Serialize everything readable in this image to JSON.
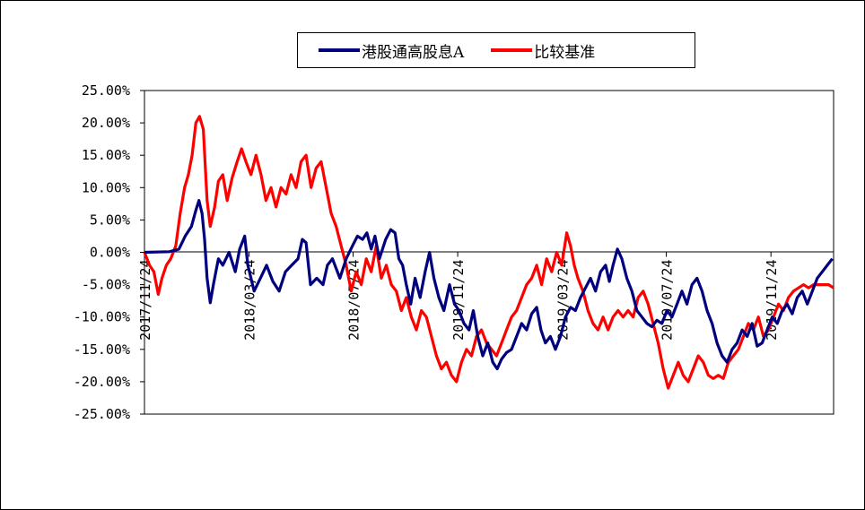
{
  "chart_data": {
    "type": "line",
    "title": "",
    "xlabel": "",
    "ylabel": "",
    "ylim": [
      -0.25,
      0.25
    ],
    "y_ticks": [
      "25.00%",
      "20.00%",
      "15.00%",
      "10.00%",
      "5.00%",
      "0.00%",
      "-5.00%",
      "-10.00%",
      "-15.00%",
      "-20.00%",
      "-25.00%"
    ],
    "x_ticks": [
      "2017/11/24",
      "2018/03/24",
      "2018/07/24",
      "2018/11/24",
      "2019/03/24",
      "2019/07/24",
      "2019/11/24"
    ],
    "grid": false,
    "legend_position": "top",
    "series": [
      {
        "name": "港股通高股息A",
        "color": "#00007f",
        "points": [
          [
            0.0,
            0.0
          ],
          [
            0.04,
            0.001
          ],
          [
            0.055,
            0.005
          ],
          [
            0.065,
            0.025
          ],
          [
            0.075,
            0.04
          ],
          [
            0.082,
            0.065
          ],
          [
            0.087,
            0.08
          ],
          [
            0.092,
            0.06
          ],
          [
            0.096,
            0.02
          ],
          [
            0.1,
            -0.04
          ],
          [
            0.105,
            -0.078
          ],
          [
            0.11,
            -0.05
          ],
          [
            0.118,
            -0.01
          ],
          [
            0.125,
            -0.02
          ],
          [
            0.135,
            0.0
          ],
          [
            0.145,
            -0.03
          ],
          [
            0.152,
            0.005
          ],
          [
            0.16,
            0.025
          ],
          [
            0.165,
            -0.02
          ],
          [
            0.175,
            -0.06
          ],
          [
            0.185,
            -0.04
          ],
          [
            0.195,
            -0.02
          ],
          [
            0.205,
            -0.045
          ],
          [
            0.215,
            -0.06
          ],
          [
            0.225,
            -0.03
          ],
          [
            0.235,
            -0.02
          ],
          [
            0.245,
            -0.01
          ],
          [
            0.252,
            0.02
          ],
          [
            0.258,
            0.015
          ],
          [
            0.265,
            -0.05
          ],
          [
            0.275,
            -0.04
          ],
          [
            0.285,
            -0.05
          ],
          [
            0.292,
            -0.02
          ],
          [
            0.3,
            -0.01
          ],
          [
            0.312,
            -0.04
          ],
          [
            0.322,
            -0.01
          ],
          [
            0.332,
            0.01
          ],
          [
            0.34,
            0.025
          ],
          [
            0.348,
            0.02
          ],
          [
            0.355,
            0.03
          ],
          [
            0.362,
            0.005
          ],
          [
            0.368,
            0.025
          ],
          [
            0.375,
            -0.01
          ],
          [
            0.385,
            0.02
          ],
          [
            0.393,
            0.035
          ],
          [
            0.4,
            0.03
          ],
          [
            0.406,
            -0.01
          ],
          [
            0.412,
            -0.02
          ],
          [
            0.418,
            -0.05
          ],
          [
            0.425,
            -0.08
          ],
          [
            0.432,
            -0.04
          ],
          [
            0.44,
            -0.07
          ],
          [
            0.448,
            -0.03
          ],
          [
            0.455,
            0.0
          ],
          [
            0.462,
            -0.04
          ],
          [
            0.47,
            -0.07
          ],
          [
            0.478,
            -0.09
          ],
          [
            0.487,
            -0.05
          ],
          [
            0.495,
            -0.08
          ],
          [
            0.502,
            -0.09
          ],
          [
            0.51,
            -0.11
          ],
          [
            0.518,
            -0.12
          ],
          [
            0.525,
            -0.09
          ],
          [
            0.532,
            -0.13
          ],
          [
            0.54,
            -0.16
          ],
          [
            0.548,
            -0.14
          ],
          [
            0.556,
            -0.17
          ],
          [
            0.563,
            -0.18
          ],
          [
            0.57,
            -0.165
          ],
          [
            0.578,
            -0.155
          ],
          [
            0.586,
            -0.15
          ],
          [
            0.594,
            -0.13
          ],
          [
            0.602,
            -0.11
          ],
          [
            0.61,
            -0.12
          ],
          [
            0.618,
            -0.095
          ],
          [
            0.626,
            -0.085
          ],
          [
            0.633,
            -0.12
          ],
          [
            0.64,
            -0.14
          ],
          [
            0.648,
            -0.13
          ],
          [
            0.656,
            -0.15
          ],
          [
            0.664,
            -0.13
          ],
          [
            0.672,
            -0.1
          ],
          [
            0.68,
            -0.085
          ],
          [
            0.688,
            -0.09
          ],
          [
            0.696,
            -0.07
          ],
          [
            0.704,
            -0.055
          ],
          [
            0.712,
            -0.04
          ],
          [
            0.72,
            -0.06
          ],
          [
            0.728,
            -0.03
          ],
          [
            0.736,
            -0.02
          ],
          [
            0.742,
            -0.045
          ],
          [
            0.748,
            -0.02
          ],
          [
            0.755,
            0.005
          ],
          [
            0.762,
            -0.01
          ],
          [
            0.77,
            -0.04
          ],
          [
            0.778,
            -0.06
          ],
          [
            0.786,
            -0.09
          ],
          [
            0.794,
            -0.1
          ],
          [
            0.802,
            -0.11
          ],
          [
            0.81,
            -0.115
          ],
          [
            0.818,
            -0.105
          ],
          [
            0.826,
            -0.11
          ],
          [
            0.834,
            -0.09
          ],
          [
            0.842,
            -0.1
          ],
          [
            0.85,
            -0.08
          ],
          [
            0.858,
            -0.06
          ],
          [
            0.866,
            -0.08
          ],
          [
            0.874,
            -0.05
          ],
          [
            0.882,
            -0.04
          ],
          [
            0.89,
            -0.06
          ],
          [
            0.898,
            -0.09
          ],
          [
            0.906,
            -0.11
          ],
          [
            0.914,
            -0.14
          ],
          [
            0.922,
            -0.16
          ],
          [
            0.93,
            -0.17
          ],
          [
            0.938,
            -0.15
          ],
          [
            0.946,
            -0.14
          ],
          [
            0.954,
            -0.12
          ],
          [
            0.962,
            -0.13
          ],
          [
            0.97,
            -0.11
          ],
          [
            0.978,
            -0.145
          ],
          [
            0.986,
            -0.14
          ],
          [
            0.994,
            -0.12
          ],
          [
            1.002,
            -0.1
          ],
          [
            1.01,
            -0.11
          ],
          [
            1.018,
            -0.09
          ],
          [
            1.026,
            -0.08
          ],
          [
            1.034,
            -0.095
          ],
          [
            1.042,
            -0.07
          ],
          [
            1.05,
            -0.06
          ],
          [
            1.058,
            -0.08
          ],
          [
            1.066,
            -0.06
          ],
          [
            1.074,
            -0.04
          ],
          [
            1.082,
            -0.03
          ],
          [
            1.09,
            -0.02
          ],
          [
            1.098,
            -0.01
          ]
        ]
      },
      {
        "name": "比较基准",
        "color": "#ff0000",
        "points": [
          [
            0.0,
            0.0
          ],
          [
            0.008,
            -0.02
          ],
          [
            0.015,
            -0.03
          ],
          [
            0.022,
            -0.065
          ],
          [
            0.028,
            -0.04
          ],
          [
            0.035,
            -0.02
          ],
          [
            0.042,
            -0.01
          ],
          [
            0.05,
            0.01
          ],
          [
            0.057,
            0.06
          ],
          [
            0.064,
            0.1
          ],
          [
            0.07,
            0.12
          ],
          [
            0.076,
            0.15
          ],
          [
            0.082,
            0.2
          ],
          [
            0.088,
            0.21
          ],
          [
            0.094,
            0.19
          ],
          [
            0.1,
            0.08
          ],
          [
            0.105,
            0.04
          ],
          [
            0.112,
            0.07
          ],
          [
            0.118,
            0.11
          ],
          [
            0.125,
            0.12
          ],
          [
            0.132,
            0.08
          ],
          [
            0.14,
            0.115
          ],
          [
            0.148,
            0.14
          ],
          [
            0.155,
            0.16
          ],
          [
            0.162,
            0.14
          ],
          [
            0.17,
            0.12
          ],
          [
            0.178,
            0.15
          ],
          [
            0.186,
            0.12
          ],
          [
            0.194,
            0.08
          ],
          [
            0.202,
            0.1
          ],
          [
            0.21,
            0.07
          ],
          [
            0.218,
            0.1
          ],
          [
            0.226,
            0.09
          ],
          [
            0.234,
            0.12
          ],
          [
            0.242,
            0.1
          ],
          [
            0.25,
            0.14
          ],
          [
            0.258,
            0.15
          ],
          [
            0.266,
            0.1
          ],
          [
            0.274,
            0.13
          ],
          [
            0.282,
            0.14
          ],
          [
            0.29,
            0.1
          ],
          [
            0.298,
            0.06
          ],
          [
            0.306,
            0.04
          ],
          [
            0.314,
            0.01
          ],
          [
            0.322,
            -0.02
          ],
          [
            0.33,
            -0.06
          ],
          [
            0.338,
            -0.03
          ],
          [
            0.346,
            -0.05
          ],
          [
            0.354,
            -0.01
          ],
          [
            0.362,
            -0.03
          ],
          [
            0.37,
            0.01
          ],
          [
            0.378,
            -0.04
          ],
          [
            0.386,
            -0.02
          ],
          [
            0.394,
            -0.05
          ],
          [
            0.402,
            -0.06
          ],
          [
            0.41,
            -0.09
          ],
          [
            0.418,
            -0.07
          ],
          [
            0.426,
            -0.1
          ],
          [
            0.434,
            -0.12
          ],
          [
            0.442,
            -0.09
          ],
          [
            0.45,
            -0.1
          ],
          [
            0.458,
            -0.13
          ],
          [
            0.466,
            -0.16
          ],
          [
            0.474,
            -0.18
          ],
          [
            0.482,
            -0.17
          ],
          [
            0.49,
            -0.19
          ],
          [
            0.498,
            -0.2
          ],
          [
            0.506,
            -0.17
          ],
          [
            0.514,
            -0.15
          ],
          [
            0.522,
            -0.16
          ],
          [
            0.53,
            -0.13
          ],
          [
            0.538,
            -0.12
          ],
          [
            0.546,
            -0.14
          ],
          [
            0.554,
            -0.15
          ],
          [
            0.562,
            -0.16
          ],
          [
            0.57,
            -0.14
          ],
          [
            0.578,
            -0.12
          ],
          [
            0.586,
            -0.1
          ],
          [
            0.594,
            -0.09
          ],
          [
            0.602,
            -0.07
          ],
          [
            0.61,
            -0.05
          ],
          [
            0.618,
            -0.04
          ],
          [
            0.626,
            -0.02
          ],
          [
            0.634,
            -0.05
          ],
          [
            0.642,
            -0.01
          ],
          [
            0.65,
            -0.03
          ],
          [
            0.658,
            0.0
          ],
          [
            0.666,
            -0.02
          ],
          [
            0.674,
            0.03
          ],
          [
            0.68,
            0.01
          ],
          [
            0.686,
            -0.02
          ],
          [
            0.692,
            -0.04
          ],
          [
            0.7,
            -0.06
          ],
          [
            0.708,
            -0.09
          ],
          [
            0.716,
            -0.11
          ],
          [
            0.724,
            -0.12
          ],
          [
            0.732,
            -0.1
          ],
          [
            0.74,
            -0.12
          ],
          [
            0.748,
            -0.1
          ],
          [
            0.756,
            -0.09
          ],
          [
            0.764,
            -0.1
          ],
          [
            0.772,
            -0.09
          ],
          [
            0.78,
            -0.1
          ],
          [
            0.788,
            -0.07
          ],
          [
            0.796,
            -0.06
          ],
          [
            0.804,
            -0.08
          ],
          [
            0.812,
            -0.11
          ],
          [
            0.82,
            -0.14
          ],
          [
            0.828,
            -0.18
          ],
          [
            0.836,
            -0.21
          ],
          [
            0.844,
            -0.19
          ],
          [
            0.852,
            -0.17
          ],
          [
            0.86,
            -0.19
          ],
          [
            0.868,
            -0.2
          ],
          [
            0.876,
            -0.18
          ],
          [
            0.884,
            -0.16
          ],
          [
            0.892,
            -0.17
          ],
          [
            0.9,
            -0.19
          ],
          [
            0.908,
            -0.195
          ],
          [
            0.916,
            -0.19
          ],
          [
            0.924,
            -0.195
          ],
          [
            0.932,
            -0.17
          ],
          [
            0.94,
            -0.16
          ],
          [
            0.948,
            -0.15
          ],
          [
            0.956,
            -0.13
          ],
          [
            0.964,
            -0.11
          ],
          [
            0.972,
            -0.12
          ],
          [
            0.98,
            -0.1
          ],
          [
            0.988,
            -0.13
          ],
          [
            0.996,
            -0.12
          ],
          [
            1.004,
            -0.1
          ],
          [
            1.012,
            -0.08
          ],
          [
            1.02,
            -0.09
          ],
          [
            1.028,
            -0.07
          ],
          [
            1.036,
            -0.06
          ],
          [
            1.044,
            -0.055
          ],
          [
            1.052,
            -0.05
          ],
          [
            1.06,
            -0.055
          ],
          [
            1.068,
            -0.05
          ],
          [
            1.076,
            -0.05
          ],
          [
            1.084,
            -0.05
          ],
          [
            1.092,
            -0.05
          ],
          [
            1.1,
            -0.055
          ]
        ]
      }
    ]
  }
}
